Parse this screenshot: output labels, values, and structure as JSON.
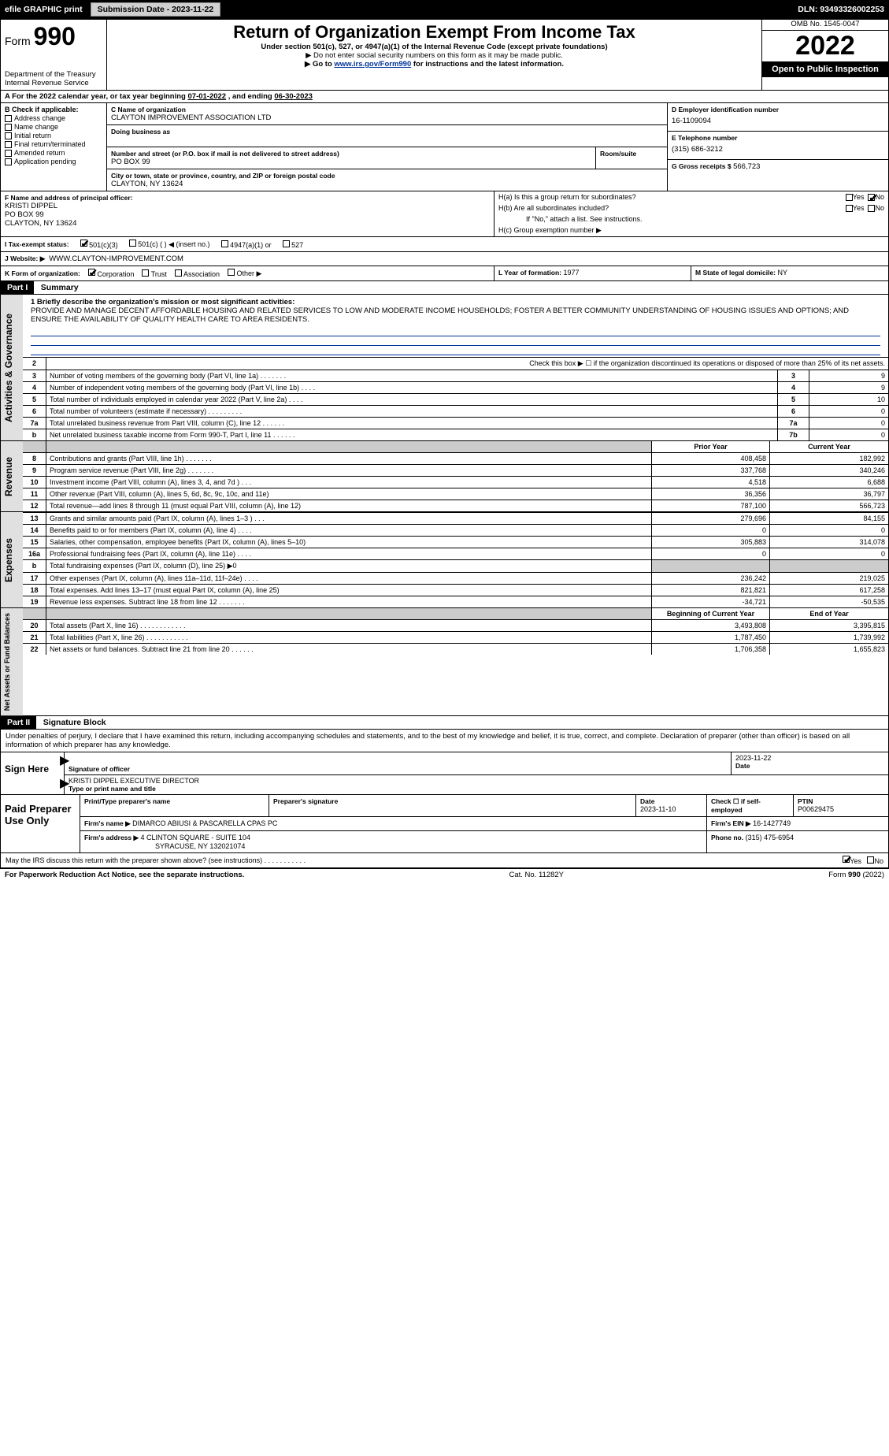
{
  "topbar": {
    "efile_label": "efile GRAPHIC print",
    "submission_label": "Submission Date - 2023-11-22",
    "dln": "DLN: 93493326002253"
  },
  "header": {
    "form_word": "Form",
    "form_num": "990",
    "dept": "Department of the Treasury",
    "irs": "Internal Revenue Service",
    "title": "Return of Organization Exempt From Income Tax",
    "sub": "Under section 501(c), 527, or 4947(a)(1) of the Internal Revenue Code (except private foundations)",
    "note1": "▶ Do not enter social security numbers on this form as it may be made public.",
    "note2_pre": "▶ Go to ",
    "note2_link": "www.irs.gov/Form990",
    "note2_post": " for instructions and the latest information.",
    "omb": "OMB No. 1545-0047",
    "year": "2022",
    "open": "Open to Public Inspection"
  },
  "period": {
    "label_a": "A For the 2022 calendar year, or tax year beginning ",
    "begin": "07-01-2022",
    "mid": " , and ending ",
    "end": "06-30-2023"
  },
  "checkB": {
    "label": "B Check if applicable:",
    "items": [
      "Address change",
      "Name change",
      "Initial return",
      "Final return/terminated",
      "Amended return",
      "Application pending"
    ]
  },
  "org": {
    "c_label": "C Name of organization",
    "name": "CLAYTON IMPROVEMENT ASSOCIATION LTD",
    "dba_label": "Doing business as",
    "addr_label": "Number and street (or P.O. box if mail is not delivered to street address)",
    "room_label": "Room/suite",
    "addr": "PO BOX 99",
    "city_label": "City or town, state or province, country, and ZIP or foreign postal code",
    "city": "CLAYTON, NY  13624"
  },
  "right_info": {
    "d_label": "D Employer identification number",
    "ein": "16-1109094",
    "e_label": "E Telephone number",
    "phone": "(315) 686-3212",
    "g_label": "G Gross receipts $",
    "gross": "566,723"
  },
  "officer": {
    "f_label": "F Name and address of principal officer:",
    "name": "KRISTI DIPPEL",
    "addr1": "PO BOX 99",
    "addr2": "CLAYTON, NY  13624"
  },
  "h": {
    "a_label": "H(a)  Is this a group return for subordinates?",
    "yes": "Yes",
    "no": "No",
    "b_label": "H(b)  Are all subordinates included?",
    "b_note": "If \"No,\" attach a list. See instructions.",
    "c_label": "H(c)  Group exemption number ▶"
  },
  "tax_status": {
    "i_label": "I Tax-exempt status:",
    "s1": "501(c)(3)",
    "s2": "501(c) (   ) ◀ (insert no.)",
    "s3": "4947(a)(1) or",
    "s4": "527"
  },
  "website": {
    "j_label": "J Website: ▶",
    "url": "WWW.CLAYTON-IMPROVEMENT.COM"
  },
  "k": {
    "label": "K Form of organization:",
    "corp": "Corporation",
    "trust": "Trust",
    "assoc": "Association",
    "other": "Other ▶"
  },
  "l": {
    "label": "L Year of formation:",
    "val": "1977"
  },
  "m": {
    "label": "M State of legal domicile:",
    "val": "NY"
  },
  "part1": {
    "hdr": "Part I",
    "title": "Summary",
    "line1_label": "1  Briefly describe the organization's mission or most significant activities:",
    "mission": "PROVIDE AND MANAGE DECENT AFFORDABLE HOUSING AND RELATED SERVICES TO LOW AND MODERATE INCOME HOUSEHOLDS; FOSTER A BETTER COMMUNITY UNDERSTANDING OF HOUSING ISSUES AND OPTIONS; AND ENSURE THE AVAILABILITY OF QUALITY HEALTH CARE TO AREA RESIDENTS.",
    "gov_label": "Activities & Governance",
    "rev_label": "Revenue",
    "exp_label": "Expenses",
    "na_label": "Net Assets or Fund Balances",
    "line2": "Check this box ▶ ☐ if the organization discontinued its operations or disposed of more than 25% of its net assets.",
    "rows_gov": [
      {
        "n": "3",
        "t": "Number of voting members of the governing body (Part VI, line 1a)  .    .    .    .    .    .    .",
        "ln": "3",
        "v": "9"
      },
      {
        "n": "4",
        "t": "Number of independent voting members of the governing body (Part VI, line 1b)  .    .    .    .",
        "ln": "4",
        "v": "9"
      },
      {
        "n": "5",
        "t": "Total number of individuals employed in calendar year 2022 (Part V, line 2a)  .    .    .    .",
        "ln": "5",
        "v": "10"
      },
      {
        "n": "6",
        "t": "Total number of volunteers (estimate if necessary)  .    .    .    .    .    .    .    .    .",
        "ln": "6",
        "v": "0"
      },
      {
        "n": "7a",
        "t": "Total unrelated business revenue from Part VIII, column (C), line 12  .    .    .    .    .    .",
        "ln": "7a",
        "v": "0"
      },
      {
        "n": "b",
        "t": "Net unrelated business taxable income from Form 990-T, Part I, line 11  .    .    .    .    .    .",
        "ln": "7b",
        "v": "0"
      }
    ],
    "prior": "Prior Year",
    "current": "Current Year",
    "rows_rev": [
      {
        "n": "8",
        "t": "Contributions and grants (Part VIII, line 1h)  .    .    .    .    .    .    .",
        "p": "408,458",
        "c": "182,992"
      },
      {
        "n": "9",
        "t": "Program service revenue (Part VIII, line 2g)  .    .    .    .    .    .    .",
        "p": "337,768",
        "c": "340,246"
      },
      {
        "n": "10",
        "t": "Investment income (Part VIII, column (A), lines 3, 4, and 7d )  .    .    .",
        "p": "4,518",
        "c": "6,688"
      },
      {
        "n": "11",
        "t": "Other revenue (Part VIII, column (A), lines 5, 6d, 8c, 9c, 10c, and 11e)",
        "p": "36,356",
        "c": "36,797"
      },
      {
        "n": "12",
        "t": "Total revenue—add lines 8 through 11 (must equal Part VIII, column (A), line 12)",
        "p": "787,100",
        "c": "566,723"
      }
    ],
    "rows_exp": [
      {
        "n": "13",
        "t": "Grants and similar amounts paid (Part IX, column (A), lines 1–3 )  .    .    .",
        "p": "279,696",
        "c": "84,155"
      },
      {
        "n": "14",
        "t": "Benefits paid to or for members (Part IX, column (A), line 4)  .    .    .    .",
        "p": "0",
        "c": "0"
      },
      {
        "n": "15",
        "t": "Salaries, other compensation, employee benefits (Part IX, column (A), lines 5–10)",
        "p": "305,883",
        "c": "314,078"
      },
      {
        "n": "16a",
        "t": "Professional fundraising fees (Part IX, column (A), line 11e)  .    .    .    .",
        "p": "0",
        "c": "0"
      },
      {
        "n": "b",
        "t": "Total fundraising expenses (Part IX, column (D), line 25) ▶0",
        "p": "",
        "c": "",
        "grey": true
      },
      {
        "n": "17",
        "t": "Other expenses (Part IX, column (A), lines 11a–11d, 11f–24e)  .    .    .    .",
        "p": "236,242",
        "c": "219,025"
      },
      {
        "n": "18",
        "t": "Total expenses. Add lines 13–17 (must equal Part IX, column (A), line 25)",
        "p": "821,821",
        "c": "617,258"
      },
      {
        "n": "19",
        "t": "Revenue less expenses. Subtract line 18 from line 12  .    .    .    .    .    .    .",
        "p": "-34,721",
        "c": "-50,535"
      }
    ],
    "beg": "Beginning of Current Year",
    "eoy": "End of Year",
    "rows_na": [
      {
        "n": "20",
        "t": "Total assets (Part X, line 16)  .    .    .    .    .    .    .    .    .    .    .    .",
        "p": "3,493,808",
        "c": "3,395,815"
      },
      {
        "n": "21",
        "t": "Total liabilities (Part X, line 26)  .    .    .    .    .    .    .    .    .    .    .",
        "p": "1,787,450",
        "c": "1,739,992"
      },
      {
        "n": "22",
        "t": "Net assets or fund balances. Subtract line 21 from line 20  .    .    .    .    .    .",
        "p": "1,706,358",
        "c": "1,655,823"
      }
    ]
  },
  "part2": {
    "hdr": "Part II",
    "title": "Signature Block",
    "decl": "Under penalties of perjury, I declare that I have examined this return, including accompanying schedules and statements, and to the best of my knowledge and belief, it is true, correct, and complete. Declaration of preparer (other than officer) is based on all information of which preparer has any knowledge."
  },
  "sign": {
    "here": "Sign Here",
    "sig_lbl": "Signature of officer",
    "date": "2023-11-22",
    "date_lbl": "Date",
    "name": "KRISTI DIPPEL  EXECUTIVE DIRECTOR",
    "name_lbl": "Type or print name and title"
  },
  "paid": {
    "left": "Paid Preparer Use Only",
    "h1": "Print/Type preparer's name",
    "h2": "Preparer's signature",
    "h3": "Date",
    "date": "2023-11-10",
    "h4": "Check ☐ if self-employed",
    "h5": "PTIN",
    "ptin": "P00629475",
    "firm_lbl": "Firm's name    ▶",
    "firm": "DIMARCO ABIUSI & PASCARELLA CPAS PC",
    "ein_lbl": "Firm's EIN ▶",
    "ein": "16-1427749",
    "addr_lbl": "Firm's address ▶",
    "addr1": "4 CLINTON SQUARE - SUITE 104",
    "addr2": "SYRACUSE, NY  132021074",
    "phone_lbl": "Phone no.",
    "phone": "(315) 475-6954"
  },
  "discuss": {
    "q": "May the IRS discuss this return with the preparer shown above? (see instructions)  .    .    .    .    .    .    .    .    .    .    .",
    "yes": "Yes",
    "no": "No"
  },
  "footer": {
    "left": "For Paperwork Reduction Act Notice, see the separate instructions.",
    "mid": "Cat. No. 11282Y",
    "right": "Form 990 (2022)"
  }
}
